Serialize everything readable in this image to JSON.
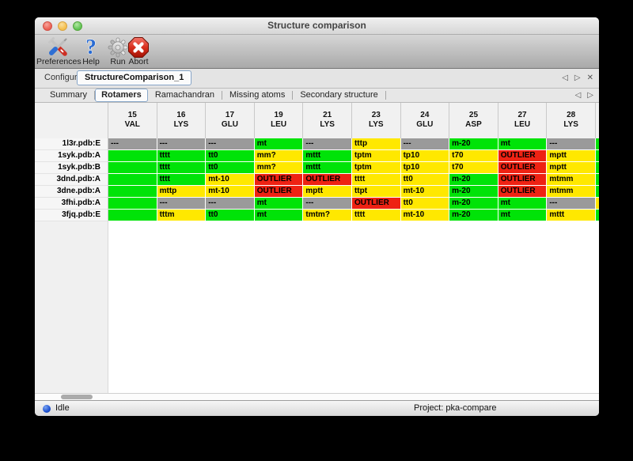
{
  "window": {
    "title": "Structure comparison"
  },
  "toolbar": {
    "items": [
      {
        "name": "preferences",
        "label": "Preferences",
        "icon": "preferences-tools-icon"
      },
      {
        "name": "help",
        "label": "Help",
        "icon": "help-question-icon"
      },
      {
        "name": "run",
        "label": "Run",
        "icon": "run-gear-icon"
      },
      {
        "name": "abort",
        "label": "Abort",
        "icon": "abort-stop-icon"
      }
    ]
  },
  "configure": {
    "label": "Configure",
    "value": "StructureComparison_1",
    "nav_prev": "◁",
    "nav_next": "▷",
    "nav_close": "✕"
  },
  "tabs": {
    "selected": "Rotamers",
    "items": [
      "Summary",
      "Rotamers",
      "Ramachandran",
      "Missing atoms",
      "Secondary structure"
    ],
    "nav_prev": "◁",
    "nav_next": "▷"
  },
  "legend_colors": {
    "favored": "#00e308",
    "allowed": "#ffe800",
    "outlier": "#ee2213",
    "missing": "#9a9a9a"
  },
  "table": {
    "columns": [
      [
        "15",
        "VAL"
      ],
      [
        "16",
        "LYS"
      ],
      [
        "17",
        "GLU"
      ],
      [
        "19",
        "LEU"
      ],
      [
        "21",
        "LYS"
      ],
      [
        "23",
        "LYS"
      ],
      [
        "24",
        "GLU"
      ],
      [
        "25",
        "ASP"
      ],
      [
        "27",
        "LEU"
      ],
      [
        "28",
        "LYS"
      ]
    ],
    "rows": [
      {
        "label": "1l3r.pdb:E",
        "overflow": "favored",
        "cells": [
          [
            "---",
            "missing"
          ],
          [
            "---",
            "missing"
          ],
          [
            "---",
            "missing"
          ],
          [
            "mt",
            "favored"
          ],
          [
            "---",
            "missing"
          ],
          [
            "tttp",
            "allowed"
          ],
          [
            "---",
            "missing"
          ],
          [
            "m-20",
            "favored"
          ],
          [
            "mt",
            "favored"
          ],
          [
            "---",
            "missing"
          ]
        ]
      },
      {
        "label": "1syk.pdb:A",
        "overflow": "favored",
        "cells": [
          [
            "",
            "favored"
          ],
          [
            "tttt",
            "favored"
          ],
          [
            "tt0",
            "favored"
          ],
          [
            "mm?",
            "allowed"
          ],
          [
            "mttt",
            "favored"
          ],
          [
            "tptm",
            "allowed"
          ],
          [
            "tp10",
            "allowed"
          ],
          [
            "t70",
            "allowed"
          ],
          [
            "OUTLIER",
            "outlier"
          ],
          [
            "mptt",
            "allowed"
          ]
        ]
      },
      {
        "label": "1syk.pdb:B",
        "overflow": "favored",
        "cells": [
          [
            "",
            "favored"
          ],
          [
            "tttt",
            "favored"
          ],
          [
            "tt0",
            "favored"
          ],
          [
            "mm?",
            "allowed"
          ],
          [
            "mttt",
            "favored"
          ],
          [
            "tptm",
            "allowed"
          ],
          [
            "tp10",
            "allowed"
          ],
          [
            "t70",
            "allowed"
          ],
          [
            "OUTLIER",
            "outlier"
          ],
          [
            "mptt",
            "allowed"
          ]
        ]
      },
      {
        "label": "3dnd.pdb:A",
        "overflow": "favored",
        "cells": [
          [
            "",
            "favored"
          ],
          [
            "tttt",
            "favored"
          ],
          [
            "mt-10",
            "allowed"
          ],
          [
            "OUTLIER",
            "outlier"
          ],
          [
            "OUTLIER",
            "outlier"
          ],
          [
            "tttt",
            "allowed"
          ],
          [
            "tt0",
            "allowed"
          ],
          [
            "m-20",
            "favored"
          ],
          [
            "OUTLIER",
            "outlier"
          ],
          [
            "mtmm",
            "allowed"
          ]
        ]
      },
      {
        "label": "3dne.pdb:A",
        "overflow": "favored",
        "cells": [
          [
            "",
            "favored"
          ],
          [
            "mttp",
            "allowed"
          ],
          [
            "mt-10",
            "allowed"
          ],
          [
            "OUTLIER",
            "outlier"
          ],
          [
            "mptt",
            "allowed"
          ],
          [
            "ttpt",
            "allowed"
          ],
          [
            "mt-10",
            "allowed"
          ],
          [
            "m-20",
            "favored"
          ],
          [
            "OUTLIER",
            "outlier"
          ],
          [
            "mtmm",
            "allowed"
          ]
        ]
      },
      {
        "label": "3fhi.pdb:A",
        "overflow": "allowed",
        "cells": [
          [
            "",
            "favored"
          ],
          [
            "---",
            "missing"
          ],
          [
            "---",
            "missing"
          ],
          [
            "mt",
            "favored"
          ],
          [
            "---",
            "missing"
          ],
          [
            "OUTLIER",
            "outlier"
          ],
          [
            "tt0",
            "allowed"
          ],
          [
            "m-20",
            "favored"
          ],
          [
            "mt",
            "favored"
          ],
          [
            "---",
            "missing"
          ]
        ]
      },
      {
        "label": "3fjq.pdb:E",
        "overflow": "favored",
        "cells": [
          [
            "",
            "favored"
          ],
          [
            "tttm",
            "allowed"
          ],
          [
            "tt0",
            "favored"
          ],
          [
            "mt",
            "favored"
          ],
          [
            "tmtm?",
            "allowed"
          ],
          [
            "tttt",
            "allowed"
          ],
          [
            "mt-10",
            "allowed"
          ],
          [
            "m-20",
            "favored"
          ],
          [
            "mt",
            "favored"
          ],
          [
            "mttt",
            "allowed"
          ]
        ]
      }
    ]
  },
  "statusbar": {
    "state": "Idle",
    "project": "Project: pka-compare"
  }
}
